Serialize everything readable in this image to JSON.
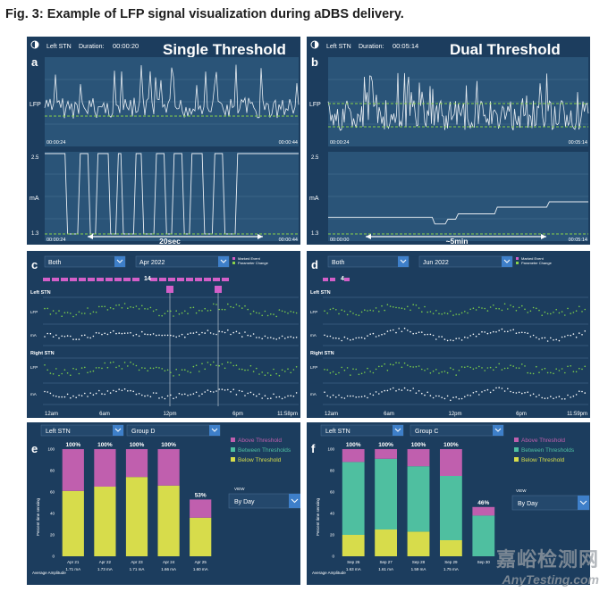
{
  "figure": {
    "title": "Fig. 3: Example of LFP signal visualization during aDBS delivery."
  },
  "colors": {
    "panel_bg": "#1c3d5e",
    "plot_bg": "#2a5478",
    "grid": "#4d7394",
    "trace": "#e9eef3",
    "threshold": "#8bd24a",
    "ui_text": "#ffffff",
    "dots_green": "#7ccf4a",
    "dots_white": "#ffffff",
    "marker": "#d35fc8",
    "above": "#c05fae",
    "between": "#4fbfa0",
    "below": "#d7dc4b",
    "button": "#3e7fc9"
  },
  "panel_a": {
    "label": "a",
    "side": "Left STN",
    "duration_label": "Duration:",
    "duration": "00:00:20",
    "mode_title": "Single Threshold",
    "lfp_label": "LFP",
    "ma_label": "mA",
    "lfp_time_start": "00:00:24",
    "lfp_time_end": "00:00:44",
    "ma_tick_top": "2.5",
    "ma_tick_bottom": "1.3",
    "ma_time_start": "00:00:24",
    "ma_time_end": "00:00:44",
    "span_label": "20sec"
  },
  "panel_b": {
    "label": "b",
    "side": "Left STN",
    "duration_label": "Duration:",
    "duration": "00:05:14",
    "mode_title": "Dual Threshold",
    "lfp_label": "LFP",
    "ma_label": "mA",
    "lfp_time_start": "00:00:24",
    "lfp_time_end": "00:05:14",
    "ma_tick_top": "2.5",
    "ma_tick_bottom": "1.3",
    "ma_time_start": "00:00:00",
    "ma_time_end": "00:05:14",
    "span_label": "~5min"
  },
  "panel_c": {
    "label": "c",
    "hemisphere_select": "Both",
    "month_select": "Apr 2022",
    "legend_marked": "Marked Event",
    "legend_param": "Parameter Change",
    "selected_day": "14",
    "left_label": "Left STN",
    "right_label": "Right STN",
    "lfp_label": "LFP",
    "ma_label": "mA",
    "x_ticks": [
      "12am",
      "6am",
      "12pm",
      "6pm",
      "11:58pm"
    ]
  },
  "panel_d": {
    "label": "d",
    "hemisphere_select": "Both",
    "month_select": "Jun 2022",
    "legend_marked": "Marked Event",
    "legend_param": "Parameter Change",
    "selected_day": "4",
    "left_label": "Left STN",
    "right_label": "Right STN",
    "lfp_label": "LFP",
    "ma_label": "mA",
    "x_ticks": [
      "12am",
      "6am",
      "12pm",
      "6pm",
      "11:59pm"
    ]
  },
  "panel_e": {
    "label": "e",
    "side_select": "Left STN",
    "group_select": "Group D",
    "view_label": "VIEW",
    "view_select": "By Day",
    "y_label": "Percent time sensing",
    "amp_label": "Average Amplitude"
  },
  "panel_f": {
    "label": "f",
    "side_select": "Left STN",
    "group_select": "Group C",
    "view_label": "VIEW",
    "view_select": "By Day",
    "y_label": "Percent time sensing",
    "amp_label": "Average Amplitude"
  },
  "watermark": {
    "line1": "嘉峪检测网",
    "line2": "AnyTesting.com"
  },
  "chart_data": [
    {
      "id": "e",
      "type": "bar",
      "stacked": true,
      "title": "",
      "categories": [
        "Apr 21",
        "Apr 22",
        "Apr 23",
        "Apr 24",
        "Apr 25"
      ],
      "totals_labels": [
        "100%",
        "100%",
        "100%",
        "100%",
        "53%"
      ],
      "amplitudes": [
        "1.71 mA",
        "1.73 mA",
        "1.71 mA",
        "1.66 mA",
        "1.60 mA"
      ],
      "series": [
        {
          "name": "Below Threshold",
          "values": [
            61,
            65,
            74,
            66,
            36
          ]
        },
        {
          "name": "Between Thresholds",
          "values": [
            0,
            0,
            0,
            0,
            0
          ]
        },
        {
          "name": "Above Threshold",
          "values": [
            39,
            35,
            26,
            34,
            17
          ]
        }
      ],
      "legend": [
        "Above Threshold",
        "Between Thresholds",
        "Below Threshold"
      ],
      "y_ticks": [
        "0",
        "20",
        "40",
        "60",
        "80",
        "100"
      ],
      "ylim": [
        0,
        100
      ],
      "ylabel": "Percent time sensing",
      "xlabel": "Average Amplitude"
    },
    {
      "id": "f",
      "type": "bar",
      "stacked": true,
      "title": "",
      "categories": [
        "Sep 26",
        "Sep 27",
        "Sep 28",
        "Sep 29",
        "Sep 30"
      ],
      "totals_labels": [
        "100%",
        "100%",
        "100%",
        "100%",
        "46%"
      ],
      "amplitudes": [
        "1.63 mA",
        "1.61 mA",
        "1.59 mA",
        "1.75 mA",
        ""
      ],
      "series": [
        {
          "name": "Below Threshold",
          "values": [
            20,
            25,
            23,
            15,
            0
          ]
        },
        {
          "name": "Between Thresholds",
          "values": [
            68,
            66,
            61,
            60,
            38
          ]
        },
        {
          "name": "Above Threshold",
          "values": [
            12,
            9,
            16,
            25,
            8
          ]
        }
      ],
      "legend": [
        "Above Threshold",
        "Between Thresholds",
        "Below Threshold"
      ],
      "y_ticks": [
        "0",
        "20",
        "40",
        "60",
        "80",
        "100"
      ],
      "ylim": [
        0,
        100
      ],
      "ylabel": "Percent time sensing",
      "xlabel": "Average Amplitude"
    },
    {
      "id": "a_ma",
      "type": "line",
      "title": "Single Threshold stimulation amplitude",
      "description": "Stimulation toggles between 1.3 mA and 2.5 mA",
      "x": [
        0,
        8,
        9,
        13,
        14,
        17,
        18,
        20,
        21,
        25,
        26,
        28,
        29,
        30,
        31,
        35,
        36,
        38,
        39,
        43,
        44,
        47,
        48,
        50,
        51,
        54,
        55,
        57,
        58,
        62,
        63,
        66,
        67,
        70,
        71,
        75,
        76,
        100
      ],
      "y": [
        2.5,
        2.5,
        1.3,
        1.3,
        2.5,
        2.5,
        1.3,
        1.3,
        2.5,
        2.5,
        1.3,
        1.3,
        2.5,
        2.5,
        1.3,
        1.3,
        2.5,
        2.5,
        1.3,
        1.3,
        2.5,
        2.5,
        1.3,
        1.3,
        2.5,
        2.5,
        1.3,
        1.3,
        2.5,
        2.5,
        1.3,
        1.3,
        2.5,
        2.5,
        1.3,
        1.3,
        2.5,
        2.5
      ],
      "ylim": [
        1.3,
        2.5
      ]
    },
    {
      "id": "b_ma",
      "type": "line",
      "title": "Dual Threshold stimulation amplitude",
      "x": [
        0,
        40,
        41,
        45,
        46,
        49,
        50,
        64,
        65,
        84,
        85,
        100
      ],
      "y": [
        1.55,
        1.55,
        1.45,
        1.45,
        1.52,
        1.52,
        1.6,
        1.6,
        1.7,
        1.7,
        1.78,
        1.78
      ],
      "ylim": [
        1.3,
        2.5
      ]
    }
  ]
}
